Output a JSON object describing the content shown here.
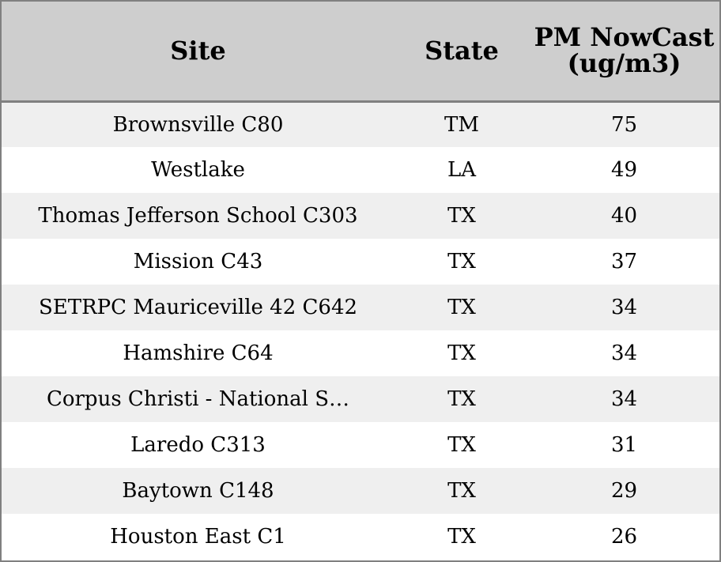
{
  "table": {
    "headers": {
      "site": "Site",
      "state": "State",
      "pm": "PM NowCast (ug/m3)"
    },
    "rows": [
      {
        "site": "Brownsville C80",
        "state": "TM",
        "pm": "75"
      },
      {
        "site": "Westlake",
        "state": "LA",
        "pm": "49"
      },
      {
        "site": "Thomas Jefferson School C303",
        "state": "TX",
        "pm": "40"
      },
      {
        "site": "Mission C43",
        "state": "TX",
        "pm": "37"
      },
      {
        "site": "SETRPC Mauriceville 42 C642",
        "state": "TX",
        "pm": "34"
      },
      {
        "site": "Hamshire C64",
        "state": "TX",
        "pm": "34"
      },
      {
        "site": "Corpus Christi - National S…",
        "state": "TX",
        "pm": "34"
      },
      {
        "site": "Laredo C313",
        "state": "TX",
        "pm": "31"
      },
      {
        "site": "Baytown C148",
        "state": "TX",
        "pm": "29"
      },
      {
        "site": "Houston East C1",
        "state": "TX",
        "pm": "26"
      }
    ]
  }
}
